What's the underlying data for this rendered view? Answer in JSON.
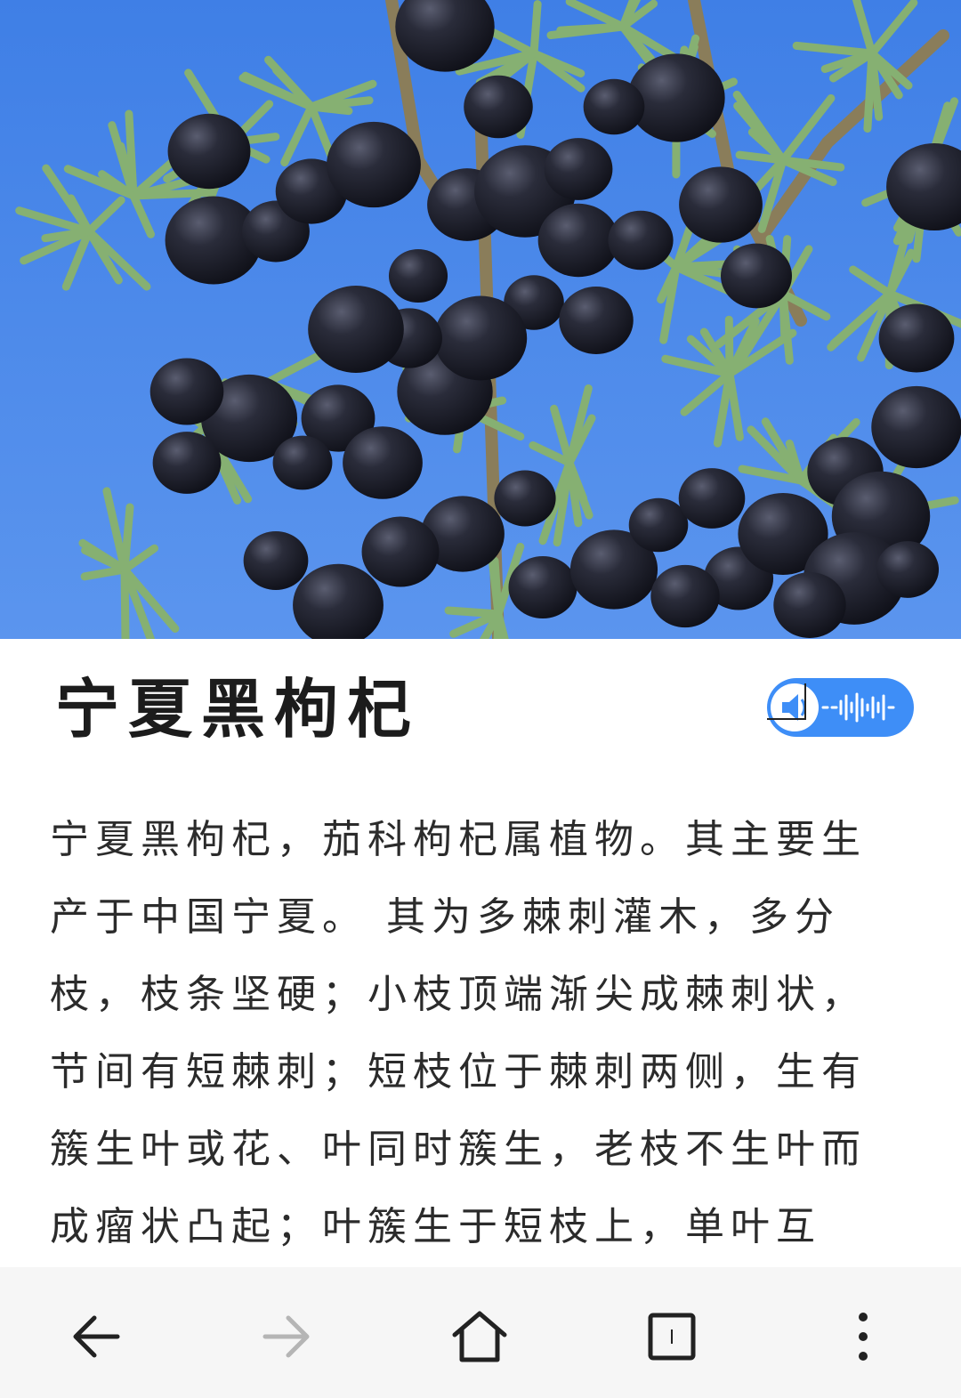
{
  "article": {
    "title": "宁夏黑枸杞",
    "body": "宁夏黑枸杞，茄科枸杞属植物。其主要生产于中国宁夏。 其为多棘刺灌木，多分枝，枝条坚硬；小枝顶端渐尖成棘刺状，节间有短棘刺；短枝位于棘刺两侧，生有簇生叶或花、叶同时簇生，老枝不生叶而成瘤状凸起；叶簇生于短枝上，单叶互生；花梗细"
  },
  "audio": {
    "icon": "speaker-icon",
    "waveform_icon": "waveform-icon",
    "color": "#3e8ef7"
  },
  "hero_image": {
    "subject": "black goji berries on branch against blue sky",
    "sky_color": "#4a86e8",
    "berry_color": "#1e1f2b",
    "leaf_color": "#7fa86a"
  },
  "navigation": {
    "buttons": [
      {
        "icon": "back-arrow-icon",
        "enabled": true
      },
      {
        "icon": "forward-arrow-icon",
        "enabled": false
      },
      {
        "icon": "home-icon",
        "enabled": true
      },
      {
        "icon": "tabs-icon",
        "enabled": true,
        "count": "1"
      },
      {
        "icon": "more-menu-icon",
        "enabled": true
      }
    ],
    "bar_color": "#f6f6f6"
  }
}
